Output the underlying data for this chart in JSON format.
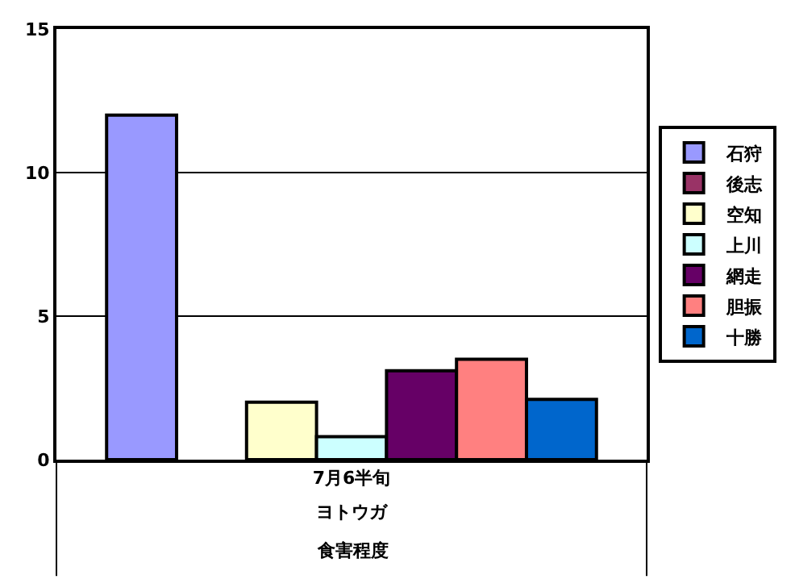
{
  "chart_data": {
    "type": "bar",
    "categories": [
      "7月6半旬"
    ],
    "annotations": [
      "ヨトウガ",
      "食害程度"
    ],
    "series": [
      {
        "name": "石狩",
        "color": "#9999ff",
        "values": [
          12
        ]
      },
      {
        "name": "後志",
        "color": "#993366",
        "values": [
          null
        ]
      },
      {
        "name": "空知",
        "color": "#ffffcc",
        "values": [
          2.0
        ]
      },
      {
        "name": "上川",
        "color": "#ccffff",
        "values": [
          0.8
        ]
      },
      {
        "name": "網走",
        "color": "#660066",
        "values": [
          3.1
        ]
      },
      {
        "name": "胆振",
        "color": "#ff8080",
        "values": [
          3.5
        ]
      },
      {
        "name": "十勝",
        "color": "#0066cc",
        "values": [
          2.1
        ]
      }
    ],
    "ylim": [
      0,
      15
    ],
    "yticks": [
      0,
      5,
      10,
      15
    ],
    "grid": "y",
    "legend": "right"
  }
}
